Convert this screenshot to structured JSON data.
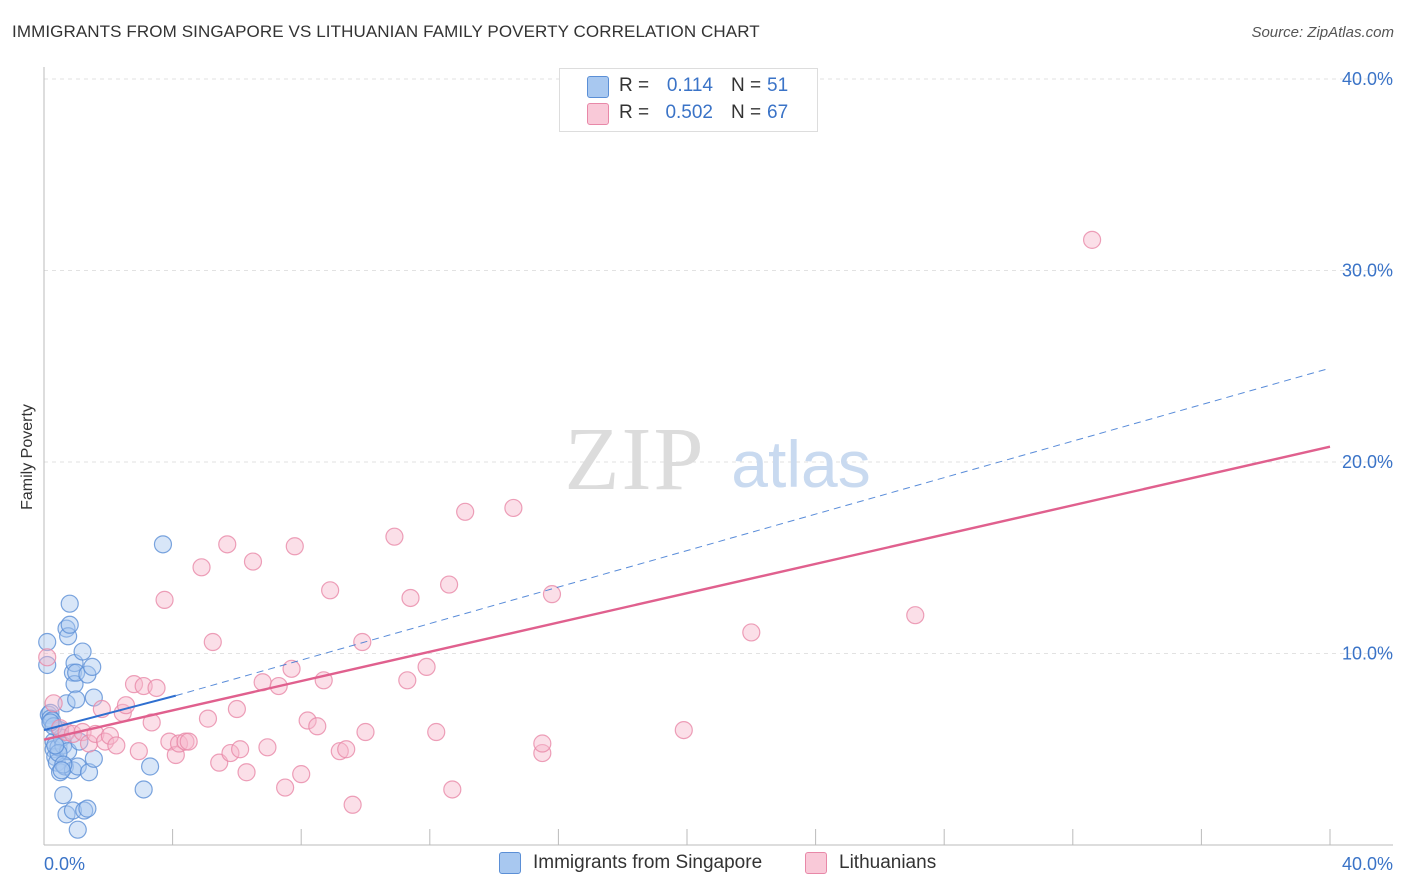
{
  "header": {
    "title": "IMMIGRANTS FROM SINGAPORE VS LITHUANIAN FAMILY POVERTY CORRELATION CHART",
    "source": "Source: ZipAtlas.com"
  },
  "watermark": {
    "zip": "ZIP",
    "atlas": "atlas"
  },
  "legend": {
    "rows": [
      {
        "r_label": "R =",
        "r_value": "0.114",
        "n_label": "N =",
        "n_value": "51"
      },
      {
        "r_label": "R =",
        "r_value": "0.502",
        "n_label": "N =",
        "n_value": "67"
      }
    ],
    "bottom": [
      "Immigrants from Singapore",
      "Lithuanians"
    ]
  },
  "colors": {
    "blue_fill": "#a8c8f0",
    "blue_stroke": "#5b8fd6",
    "blue_line": "#2f6fd0",
    "pink_fill": "#f6b8cb",
    "pink_stroke": "#e888a8",
    "pink_line": "#e0608e",
    "tick_text": "#3a73c7",
    "grid": "#e2e2e2"
  },
  "chart_data": {
    "type": "scatter",
    "ylabel": "Family Poverty",
    "xlabel": "",
    "xlim": [
      0,
      40
    ],
    "ylim": [
      0,
      40
    ],
    "x_tick_labels": [
      "0.0%",
      "40.0%"
    ],
    "y_tick_labels": [
      "10.0%",
      "20.0%",
      "30.0%",
      "40.0%"
    ],
    "y_ticks": [
      10,
      20,
      30,
      40
    ],
    "grid": true,
    "series": [
      {
        "name": "Immigrants from Singapore",
        "color": "blue",
        "points": [
          [
            0.1,
            9.4
          ],
          [
            0.1,
            10.6
          ],
          [
            0.15,
            6.8
          ],
          [
            0.2,
            6.9
          ],
          [
            0.2,
            6.6
          ],
          [
            0.25,
            6.5
          ],
          [
            0.3,
            5.4
          ],
          [
            0.3,
            5.0
          ],
          [
            0.35,
            4.6
          ],
          [
            0.4,
            4.3
          ],
          [
            0.45,
            5.1
          ],
          [
            0.5,
            3.8
          ],
          [
            0.5,
            6.0
          ],
          [
            0.55,
            5.6
          ],
          [
            0.6,
            2.6
          ],
          [
            0.6,
            5.2
          ],
          [
            0.65,
            4.1
          ],
          [
            0.7,
            1.6
          ],
          [
            0.7,
            7.4
          ],
          [
            0.75,
            4.9
          ],
          [
            0.7,
            11.3
          ],
          [
            0.75,
            10.9
          ],
          [
            0.8,
            12.6
          ],
          [
            0.8,
            11.5
          ],
          [
            0.9,
            1.8
          ],
          [
            0.9,
            3.9
          ],
          [
            0.9,
            9.0
          ],
          [
            0.95,
            9.5
          ],
          [
            0.95,
            8.4
          ],
          [
            1.0,
            7.6
          ],
          [
            1.0,
            9.0
          ],
          [
            1.05,
            4.1
          ],
          [
            1.05,
            0.8
          ],
          [
            1.1,
            5.4
          ],
          [
            1.2,
            10.1
          ],
          [
            1.25,
            1.8
          ],
          [
            1.35,
            1.9
          ],
          [
            1.35,
            8.9
          ],
          [
            1.4,
            3.8
          ],
          [
            1.5,
            9.3
          ],
          [
            1.55,
            4.5
          ],
          [
            1.55,
            7.7
          ],
          [
            3.1,
            2.9
          ],
          [
            3.3,
            4.1
          ],
          [
            3.7,
            15.7
          ],
          [
            0.3,
            6.2
          ],
          [
            0.45,
            4.8
          ],
          [
            0.6,
            4.2
          ],
          [
            0.35,
            5.2
          ],
          [
            0.2,
            6.4
          ],
          [
            0.55,
            3.9
          ]
        ]
      },
      {
        "name": "Lithuanians",
        "color": "pink",
        "points": [
          [
            0.1,
            9.8
          ],
          [
            0.3,
            7.4
          ],
          [
            0.5,
            6.1
          ],
          [
            0.7,
            5.9
          ],
          [
            0.9,
            5.8
          ],
          [
            1.2,
            5.9
          ],
          [
            1.4,
            5.3
          ],
          [
            1.6,
            5.8
          ],
          [
            1.8,
            7.1
          ],
          [
            1.9,
            5.4
          ],
          [
            2.05,
            5.7
          ],
          [
            2.25,
            5.2
          ],
          [
            2.45,
            6.9
          ],
          [
            2.55,
            7.3
          ],
          [
            2.8,
            8.4
          ],
          [
            2.95,
            4.9
          ],
          [
            3.1,
            8.3
          ],
          [
            3.35,
            6.4
          ],
          [
            3.5,
            8.2
          ],
          [
            3.75,
            12.8
          ],
          [
            3.9,
            5.4
          ],
          [
            4.1,
            4.7
          ],
          [
            4.2,
            5.3
          ],
          [
            4.4,
            5.4
          ],
          [
            4.5,
            5.4
          ],
          [
            4.9,
            14.5
          ],
          [
            5.1,
            6.6
          ],
          [
            5.25,
            10.6
          ],
          [
            5.45,
            4.3
          ],
          [
            5.7,
            15.7
          ],
          [
            5.8,
            4.8
          ],
          [
            6.0,
            7.1
          ],
          [
            6.1,
            5.0
          ],
          [
            6.3,
            3.8
          ],
          [
            6.5,
            14.8
          ],
          [
            6.8,
            8.5
          ],
          [
            6.95,
            5.1
          ],
          [
            7.3,
            8.3
          ],
          [
            7.5,
            3.0
          ],
          [
            7.7,
            9.2
          ],
          [
            7.8,
            15.6
          ],
          [
            8.0,
            3.7
          ],
          [
            8.2,
            6.5
          ],
          [
            8.5,
            6.2
          ],
          [
            8.7,
            8.6
          ],
          [
            8.9,
            13.3
          ],
          [
            9.2,
            4.9
          ],
          [
            9.4,
            5.0
          ],
          [
            9.6,
            2.1
          ],
          [
            9.9,
            10.6
          ],
          [
            10.0,
            5.9
          ],
          [
            10.9,
            16.1
          ],
          [
            11.3,
            8.6
          ],
          [
            11.4,
            12.9
          ],
          [
            11.9,
            9.3
          ],
          [
            12.2,
            5.9
          ],
          [
            12.6,
            13.6
          ],
          [
            12.7,
            2.9
          ],
          [
            13.1,
            17.4
          ],
          [
            14.6,
            17.6
          ],
          [
            15.5,
            4.8
          ],
          [
            15.5,
            5.3
          ],
          [
            15.8,
            13.1
          ],
          [
            19.9,
            6.0
          ],
          [
            22.0,
            11.1
          ],
          [
            27.1,
            12.0
          ],
          [
            32.6,
            31.6
          ]
        ]
      }
    ],
    "trend_lines": [
      {
        "series": "Immigrants from Singapore",
        "solid": [
          [
            0,
            6.0
          ],
          [
            4.1,
            7.8
          ]
        ],
        "dashed": [
          [
            4.1,
            7.8
          ],
          [
            40,
            24.9
          ]
        ]
      },
      {
        "series": "Lithuanians",
        "solid": [
          [
            0,
            5.5
          ],
          [
            40,
            20.8
          ]
        ]
      }
    ]
  }
}
